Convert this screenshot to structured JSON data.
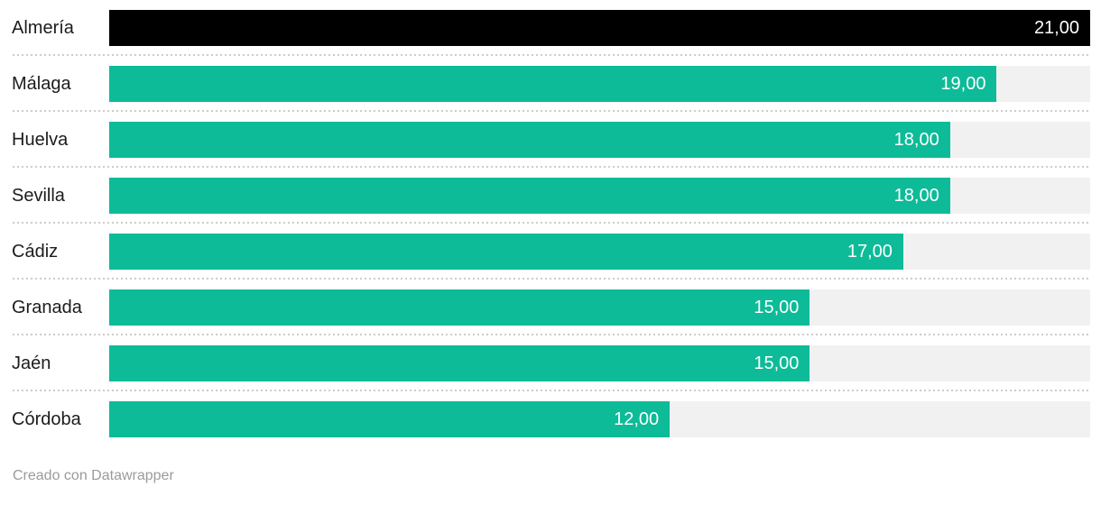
{
  "chart_data": {
    "type": "bar",
    "orientation": "horizontal",
    "title": "",
    "xlabel": "",
    "ylabel": "",
    "xlim": [
      0,
      21
    ],
    "grid": false,
    "legend": false,
    "categories": [
      "Almería",
      "Málaga",
      "Huelva",
      "Sevilla",
      "Cádiz",
      "Granada",
      "Jaén",
      "Córdoba"
    ],
    "values": [
      21,
      19,
      18,
      18,
      17,
      15,
      15,
      12
    ],
    "value_labels": [
      "21,00",
      "19,00",
      "18,00",
      "18,00",
      "17,00",
      "15,00",
      "15,00",
      "12,00"
    ],
    "highlight_index": 0,
    "colors": {
      "default_bar": "#0dbb98",
      "highlight_bar": "#000000",
      "track": "#f1f1f2",
      "separator": "#cccccc",
      "category_label": "#1c1c1c",
      "value_text": "#ffffff",
      "credit_text": "#9b9b9b"
    }
  },
  "footer": {
    "credit": "Creado con Datawrapper"
  }
}
